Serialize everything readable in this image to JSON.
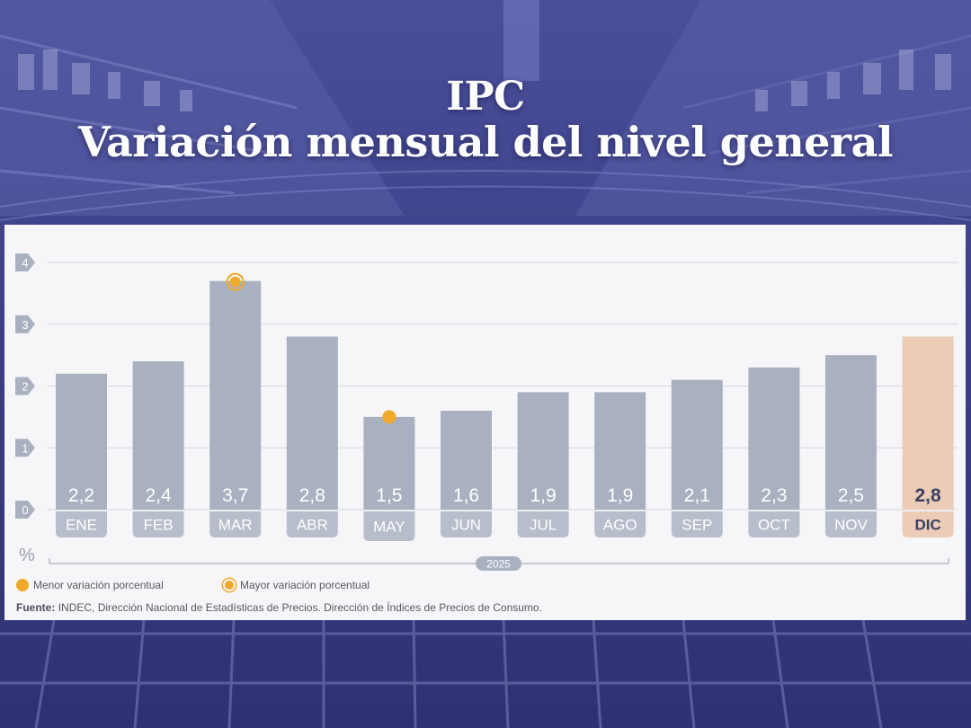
{
  "title_line1": "IPC",
  "title_line2": "Variación mensual del nivel general",
  "chart_data": {
    "type": "bar",
    "categories": [
      "ENE",
      "FEB",
      "MAR",
      "ABR",
      "MAY",
      "JUN",
      "JUL",
      "AGO",
      "SEP",
      "OCT",
      "NOV",
      "DIC"
    ],
    "values": [
      2.2,
      2.4,
      3.7,
      2.8,
      1.5,
      1.6,
      1.9,
      1.9,
      2.1,
      2.3,
      2.5,
      2.8
    ],
    "value_labels": [
      "2,2",
      "2,4",
      "3,7",
      "2,8",
      "1,5",
      "1,6",
      "1,9",
      "1,9",
      "2,1",
      "2,3",
      "2,5",
      "2,8"
    ],
    "ylim": [
      0,
      4
    ],
    "yticks": [
      0,
      1,
      2,
      3,
      4
    ],
    "ylabel": "%",
    "year_label": "2025",
    "grid": true,
    "highlight_category": "DIC",
    "min_marker_category": "MAY",
    "max_marker_category": "MAR",
    "colors": {
      "bar": "#a9b1c0",
      "highlight_bar": "#ecccb6",
      "marker": "#f0a92a",
      "value_label": "#ffffff",
      "highlight_label": "#3a3f63"
    }
  },
  "legend": {
    "min_label": "Menor variación porcentual",
    "max_label": "Mayor variación porcentual"
  },
  "source": {
    "label": "Fuente:",
    "text": "INDEC, Dirección Nacional de Estadísticas de Precios. Dirección de Índices de Precios de Consumo."
  }
}
